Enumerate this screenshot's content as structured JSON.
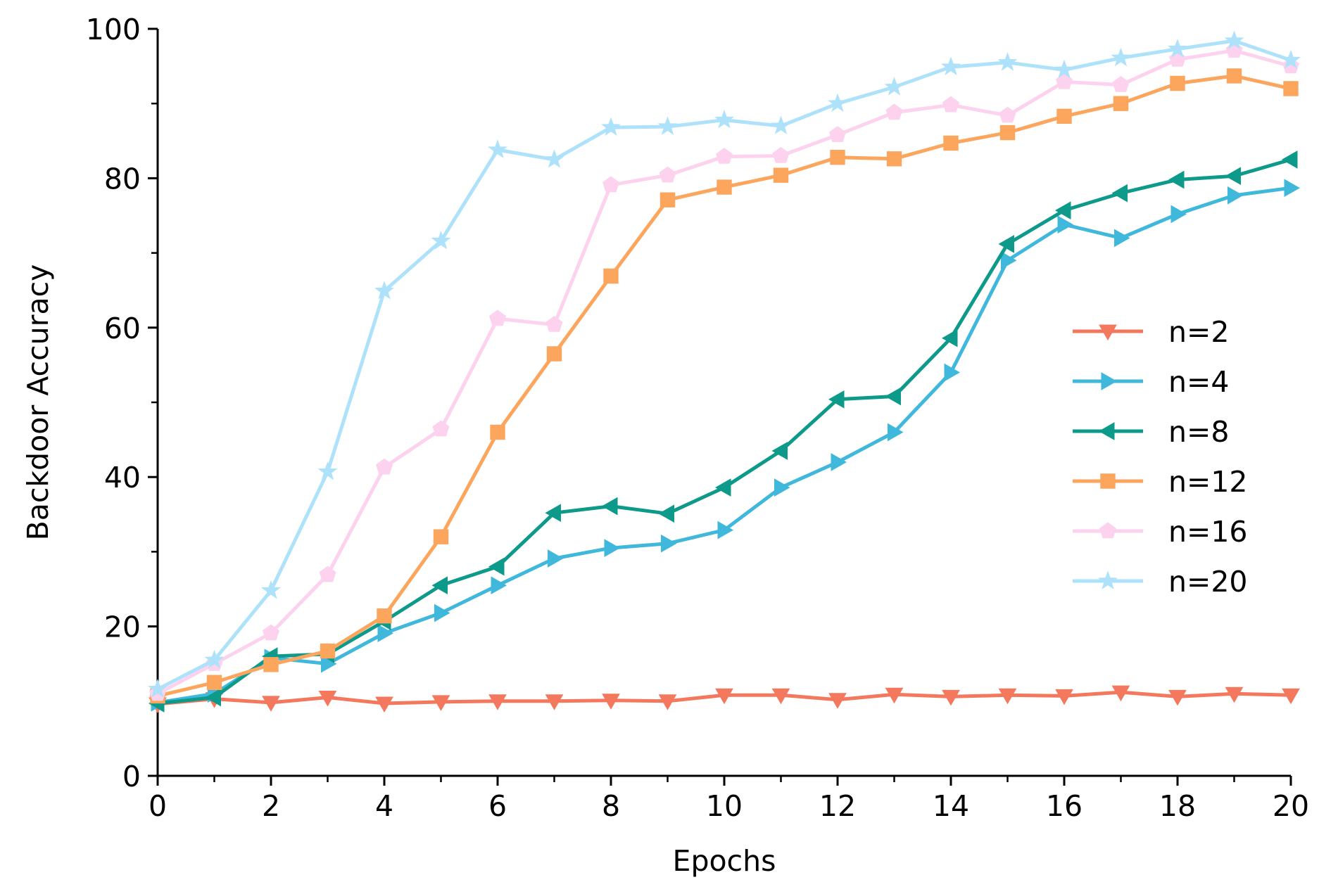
{
  "chart_data": {
    "type": "line",
    "title": "",
    "xlabel": "Epochs",
    "ylabel": "Backdoor Accuracy",
    "xlim": [
      0,
      20
    ],
    "ylim": [
      0,
      100
    ],
    "x_ticks": [
      0,
      2,
      4,
      6,
      8,
      10,
      12,
      14,
      16,
      18,
      20
    ],
    "x_minor_ticks": [
      1,
      3,
      5,
      7,
      9,
      11,
      13,
      15,
      17,
      19
    ],
    "y_ticks": [
      0,
      20,
      40,
      60,
      80,
      100
    ],
    "y_minor_ticks": [
      10,
      30,
      50,
      70,
      90
    ],
    "grid": false,
    "legend_position": "right",
    "x": [
      0,
      1,
      2,
      3,
      4,
      5,
      6,
      7,
      8,
      9,
      10,
      11,
      12,
      13,
      14,
      15,
      16,
      17,
      18,
      19,
      20
    ],
    "series": [
      {
        "name": "n=2",
        "color": "#f4785d",
        "marker": "triangle-down",
        "values": [
          9.6,
          10.3,
          9.8,
          10.5,
          9.7,
          9.9,
          10.0,
          10.0,
          10.1,
          10.0,
          10.8,
          10.8,
          10.2,
          10.9,
          10.6,
          10.8,
          10.7,
          11.2,
          10.6,
          11.0,
          10.8
        ]
      },
      {
        "name": "n=4",
        "color": "#3fb8dc",
        "marker": "triangle-right",
        "values": [
          9.8,
          11.0,
          15.8,
          15.0,
          19.1,
          21.8,
          25.5,
          29.1,
          30.5,
          31.1,
          32.9,
          38.6,
          42.0,
          46.0,
          54.0,
          69.0,
          73.8,
          72.0,
          75.2,
          77.7,
          78.7
        ]
      },
      {
        "name": "n=8",
        "color": "#0d9a8a",
        "marker": "triangle-left",
        "values": [
          9.7,
          10.5,
          16.0,
          16.3,
          20.7,
          25.5,
          28.0,
          35.2,
          36.1,
          35.1,
          38.6,
          43.5,
          50.4,
          50.8,
          58.6,
          71.2,
          75.7,
          78.0,
          79.8,
          80.3,
          82.5
        ]
      },
      {
        "name": "n=12",
        "color": "#fca55d",
        "marker": "square",
        "values": [
          10.7,
          12.5,
          14.9,
          16.7,
          21.4,
          32.0,
          46.0,
          56.5,
          66.9,
          77.1,
          78.8,
          80.4,
          82.8,
          82.6,
          84.7,
          86.1,
          88.3,
          90.0,
          92.7,
          93.7,
          92.0
        ]
      },
      {
        "name": "n=16",
        "color": "#fcd2ee",
        "marker": "pentagon",
        "values": [
          11.0,
          15.0,
          19.1,
          26.9,
          41.3,
          46.4,
          61.2,
          60.4,
          79.1,
          80.4,
          82.9,
          83.0,
          85.8,
          88.8,
          89.8,
          88.4,
          92.9,
          92.5,
          95.9,
          97.1,
          95.0
        ]
      },
      {
        "name": "n=20",
        "color": "#aee2fa",
        "marker": "star",
        "values": [
          11.6,
          15.5,
          24.8,
          40.7,
          64.9,
          71.6,
          83.8,
          82.5,
          86.8,
          86.9,
          87.8,
          87.0,
          90.0,
          92.2,
          94.9,
          95.5,
          94.5,
          96.1,
          97.3,
          98.4,
          95.8
        ]
      }
    ]
  }
}
